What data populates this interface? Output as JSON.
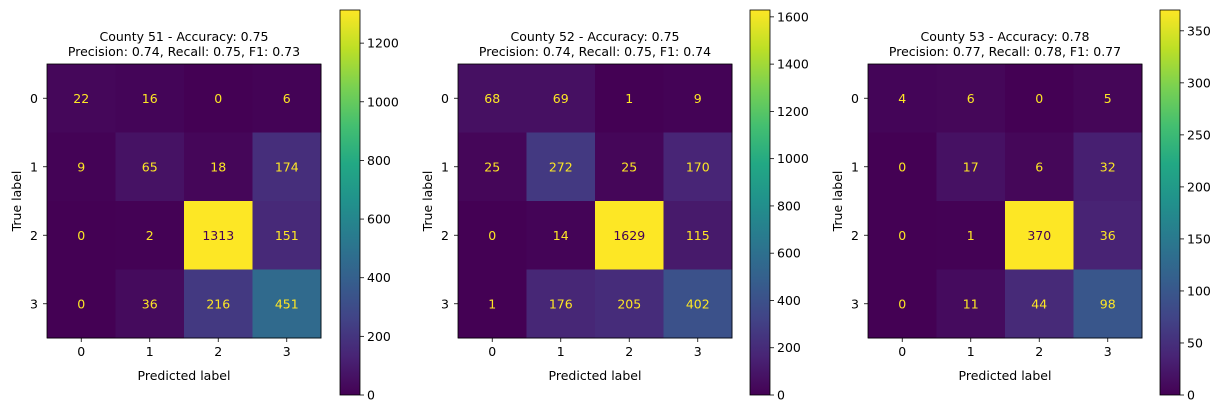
{
  "chart_data": [
    {
      "type": "heatmap",
      "title_line1": "County 51 - Accuracy: 0.75",
      "title_line2": "Precision: 0.74, Recall: 0.75, F1: 0.73",
      "xlabel": "Predicted label",
      "ylabel": "True label",
      "x_categories": [
        "0",
        "1",
        "2",
        "3"
      ],
      "y_categories": [
        "0",
        "1",
        "2",
        "3"
      ],
      "matrix": [
        [
          22,
          16,
          0,
          6
        ],
        [
          9,
          65,
          18,
          174
        ],
        [
          0,
          2,
          1313,
          151
        ],
        [
          0,
          36,
          216,
          451
        ]
      ],
      "colorbar_range": [
        0,
        1313
      ],
      "colorbar_ticks": [
        0,
        200,
        400,
        600,
        800,
        1000,
        1200
      ],
      "colormap": "viridis"
    },
    {
      "type": "heatmap",
      "title_line1": "County 52 - Accuracy: 0.75",
      "title_line2": "Precision: 0.74, Recall: 0.75, F1: 0.74",
      "xlabel": "Predicted label",
      "ylabel": "True label",
      "x_categories": [
        "0",
        "1",
        "2",
        "3"
      ],
      "y_categories": [
        "0",
        "1",
        "2",
        "3"
      ],
      "matrix": [
        [
          68,
          69,
          1,
          9
        ],
        [
          25,
          272,
          25,
          170
        ],
        [
          0,
          14,
          1629,
          115
        ],
        [
          1,
          176,
          205,
          402
        ]
      ],
      "colorbar_range": [
        0,
        1629
      ],
      "colorbar_ticks": [
        0,
        200,
        400,
        600,
        800,
        1000,
        1200,
        1400,
        1600
      ],
      "colormap": "viridis"
    },
    {
      "type": "heatmap",
      "title_line1": "County 53 - Accuracy: 0.78",
      "title_line2": "Precision: 0.77, Recall: 0.78, F1: 0.77",
      "xlabel": "Predicted label",
      "ylabel": "True label",
      "x_categories": [
        "0",
        "1",
        "2",
        "3"
      ],
      "y_categories": [
        "0",
        "1",
        "2",
        "3"
      ],
      "matrix": [
        [
          4,
          6,
          0,
          5
        ],
        [
          0,
          17,
          6,
          32
        ],
        [
          0,
          1,
          370,
          36
        ],
        [
          0,
          11,
          44,
          98
        ]
      ],
      "colorbar_range": [
        0,
        370
      ],
      "colorbar_ticks": [
        0,
        50,
        100,
        150,
        200,
        250,
        300,
        350
      ],
      "colormap": "viridis"
    }
  ],
  "colors": {
    "text_on_dark": "#fde725",
    "text_on_light": "#440154",
    "axis": "#000000"
  }
}
